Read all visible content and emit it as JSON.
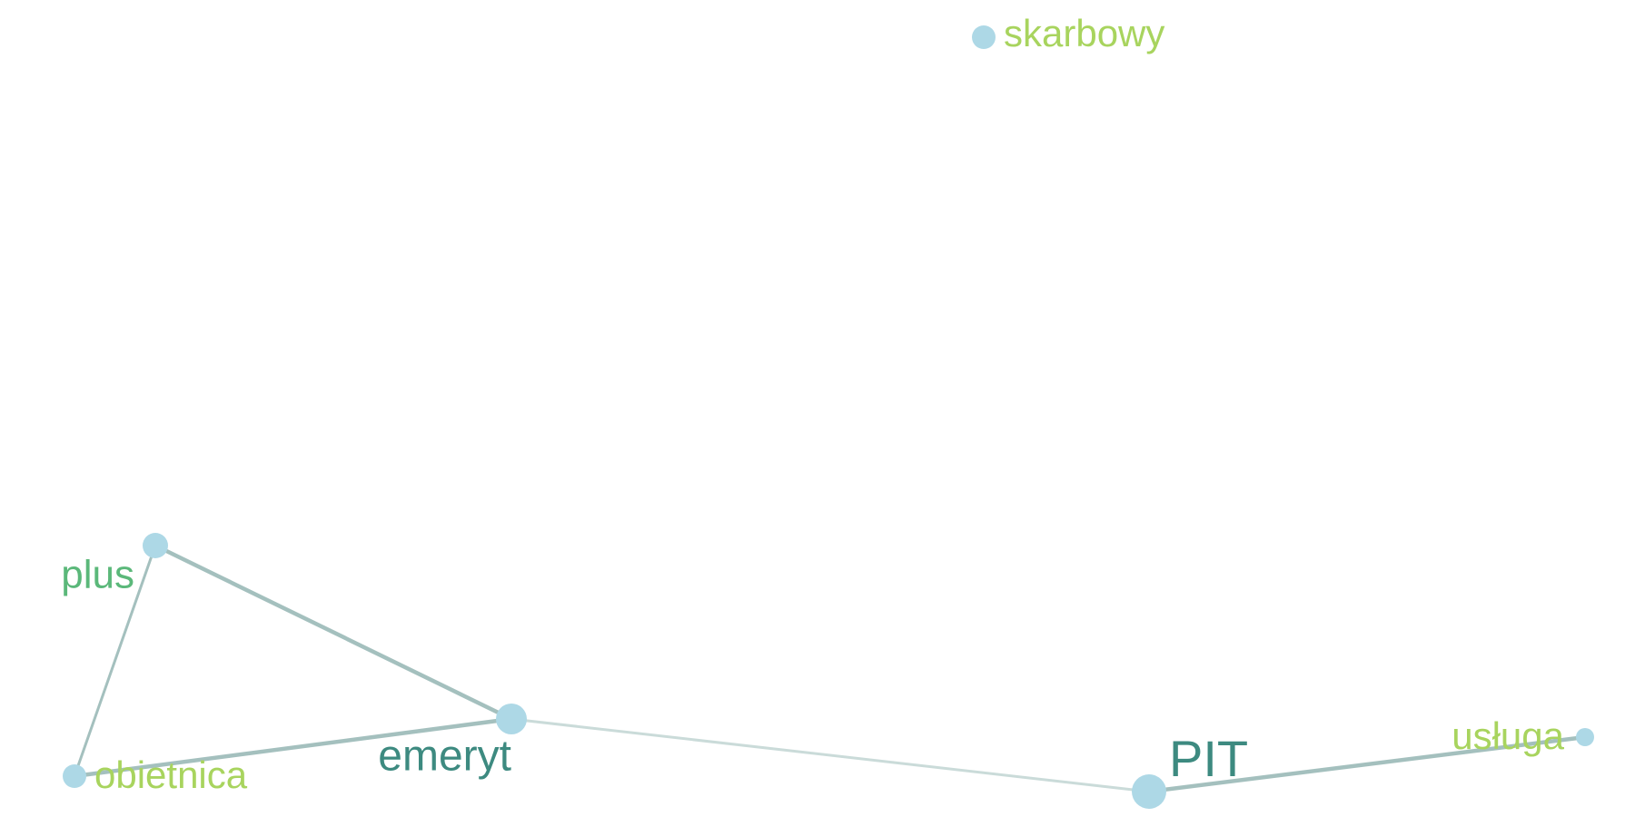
{
  "colors": {
    "node_fill": "#ADD8E6",
    "edge": "#9FBDBA",
    "label_dark_teal": "#3D8A80",
    "label_green": "#5BB87A",
    "label_lime": "#A8D45E"
  },
  "graph": {
    "nodes": [
      {
        "id": "skarbowy",
        "label": "skarbowy",
        "color": "#A8D45E",
        "weight": 1
      },
      {
        "id": "plus",
        "label": "plus",
        "color": "#5BB87A",
        "weight": 2
      },
      {
        "id": "emeryt",
        "label": "emeryt",
        "color": "#3D8A80",
        "weight": 3
      },
      {
        "id": "obietnica",
        "label": "obietnica",
        "color": "#A8D45E",
        "weight": 1
      },
      {
        "id": "PIT",
        "label": "PIT",
        "color": "#3D8A80",
        "weight": 4
      },
      {
        "id": "usluga",
        "label": "usługa",
        "color": "#A8D45E",
        "weight": 1
      }
    ],
    "edges": [
      {
        "source": "plus",
        "target": "emeryt",
        "weight": 3
      },
      {
        "source": "plus",
        "target": "obietnica",
        "weight": 2
      },
      {
        "source": "obietnica",
        "target": "emeryt",
        "weight": 3
      },
      {
        "source": "emeryt",
        "target": "PIT",
        "weight": 1
      },
      {
        "source": "PIT",
        "target": "usluga",
        "weight": 3
      }
    ]
  }
}
